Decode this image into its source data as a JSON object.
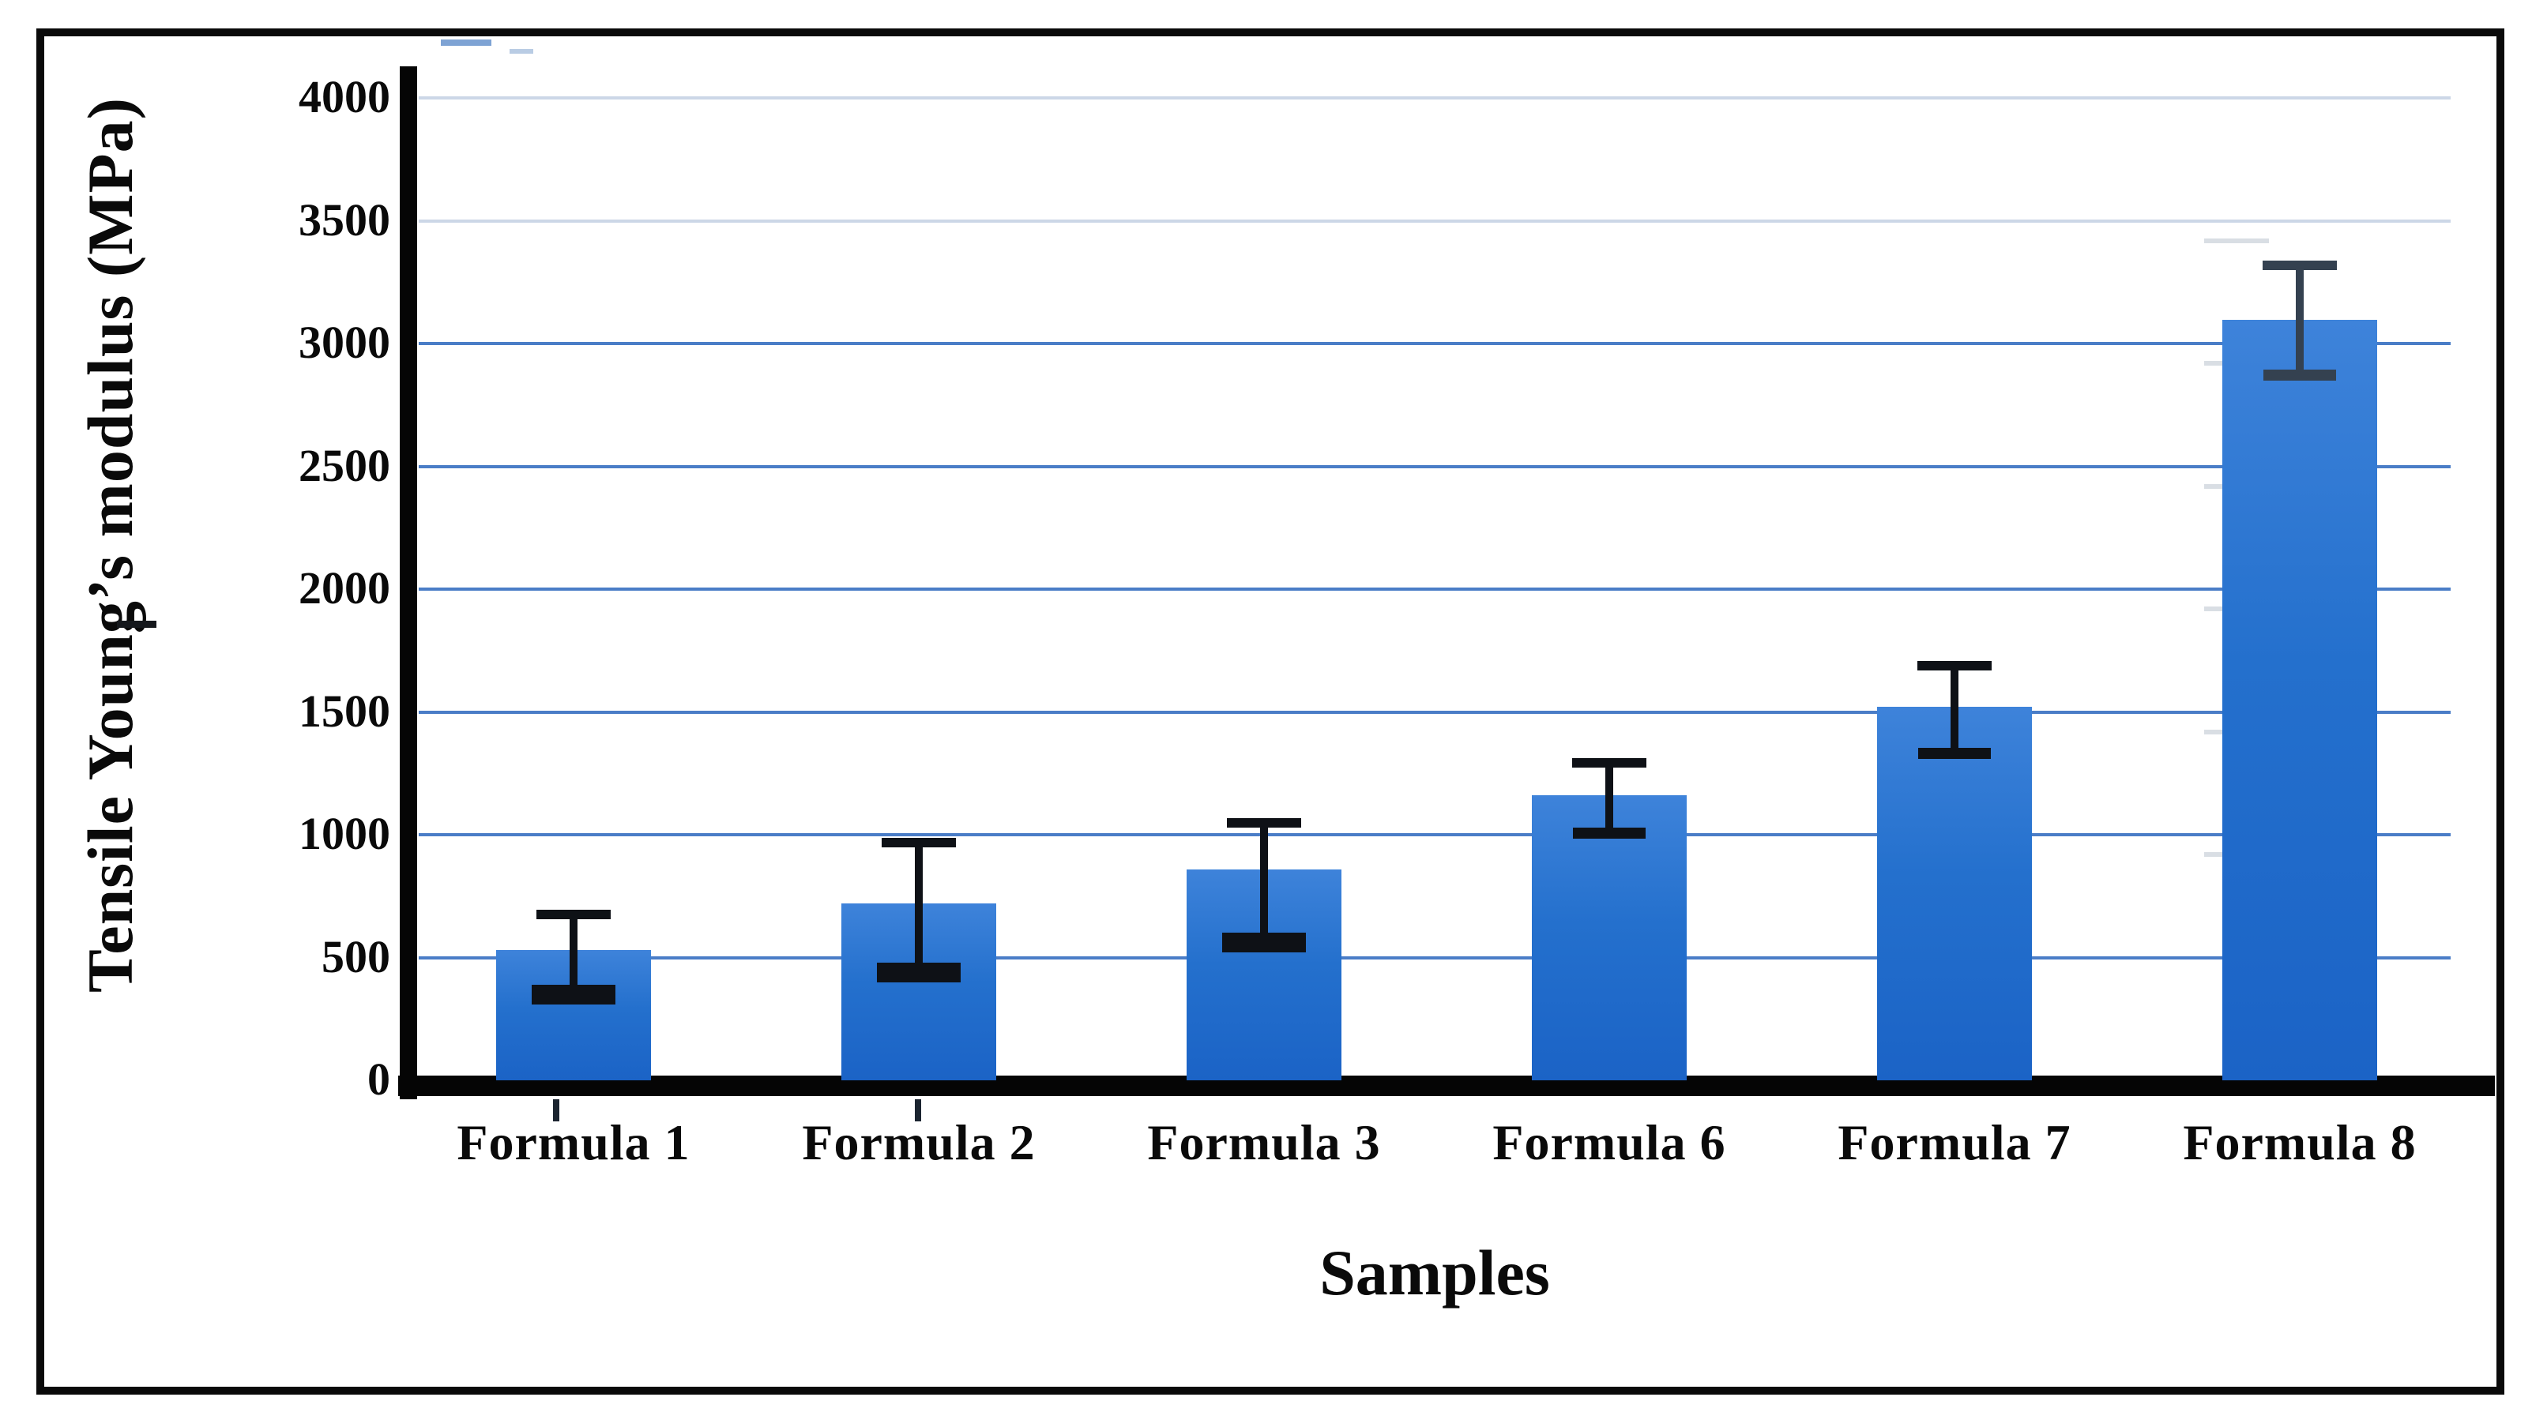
{
  "figure": {
    "background": "#ffffff",
    "border_color": "#0a0a0a"
  },
  "chart_data": {
    "type": "bar",
    "title": "",
    "xlabel": "Samples",
    "ylabel": "Tensile Young’s modulus (MPa)",
    "categories": [
      "Formula 1",
      "Formula 2",
      "Formula 3",
      "Formula 6",
      "Formula 7",
      "Formula 8"
    ],
    "values": [
      530,
      720,
      860,
      1160,
      1520,
      3095
    ],
    "errors": {
      "low": [
        350,
        440,
        560,
        1005,
        1330,
        2870
      ],
      "high": [
        680,
        970,
        1050,
        1295,
        1690,
        3320
      ]
    },
    "ylim": [
      0,
      4000
    ],
    "ytick_step": 500,
    "ytick_labels": [
      "0",
      "500",
      "1000",
      "1500",
      "2000",
      "2500",
      "3000",
      "3500",
      "4000"
    ],
    "grid": "horizontal",
    "legend_position": "none",
    "colors": {
      "bar_gradient_top": "#3e83da",
      "bar_gradient_mid": "#2470cd",
      "bar_gradient_bottom": "#1b63c6",
      "grid_strong": "#4a7dc7",
      "grid_pale": "#ccd7e7",
      "axis": "#050505",
      "error_bar": "#0e1116",
      "error_bar_last": "#344150",
      "text": "#0a0a0a"
    }
  }
}
